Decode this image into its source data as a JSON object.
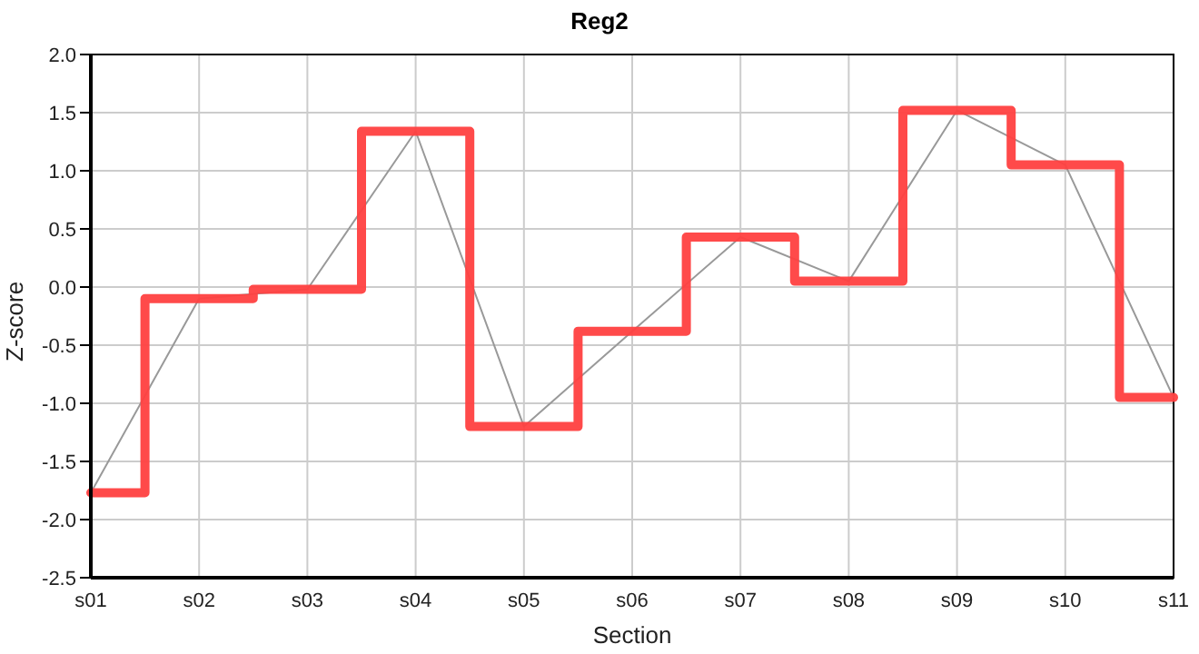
{
  "chart_data": {
    "type": "step",
    "title": "Reg2",
    "xlabel": "Section",
    "ylabel": "Z-score",
    "categories": [
      "s01",
      "s02",
      "s03",
      "s04",
      "s05",
      "s06",
      "s07",
      "s08",
      "s09",
      "s10",
      "s11"
    ],
    "series": [
      {
        "color": "#ff4040",
        "values": [
          -1.77,
          -0.1,
          -0.02,
          1.34,
          -1.2,
          -0.38,
          0.43,
          0.05,
          1.52,
          1.05,
          -0.95
        ]
      },
      {
        "type": "line",
        "color": "#999999",
        "values": [
          -1.77,
          -0.1,
          -0.02,
          1.34,
          -1.2,
          -0.38,
          0.43,
          0.05,
          1.52,
          1.05,
          -0.95
        ]
      }
    ],
    "ylim": [
      -2.5,
      2.0
    ],
    "yticks": [
      {
        "value": -2.5,
        "label": "-2.5"
      },
      {
        "value": -2,
        "label": "-2.0"
      },
      {
        "value": -1.5,
        "label": "-1.5"
      },
      {
        "value": -1,
        "label": "-1.0"
      },
      {
        "value": -0.5,
        "label": "-0.5"
      },
      {
        "value": 0,
        "label": "0.0"
      },
      {
        "value": 0.5,
        "label": "0.5"
      },
      {
        "value": 1,
        "label": "1.0"
      },
      {
        "value": 1.5,
        "label": "1.5"
      },
      {
        "value": 2,
        "label": "2.0"
      }
    ],
    "grid": true,
    "legend": false
  }
}
